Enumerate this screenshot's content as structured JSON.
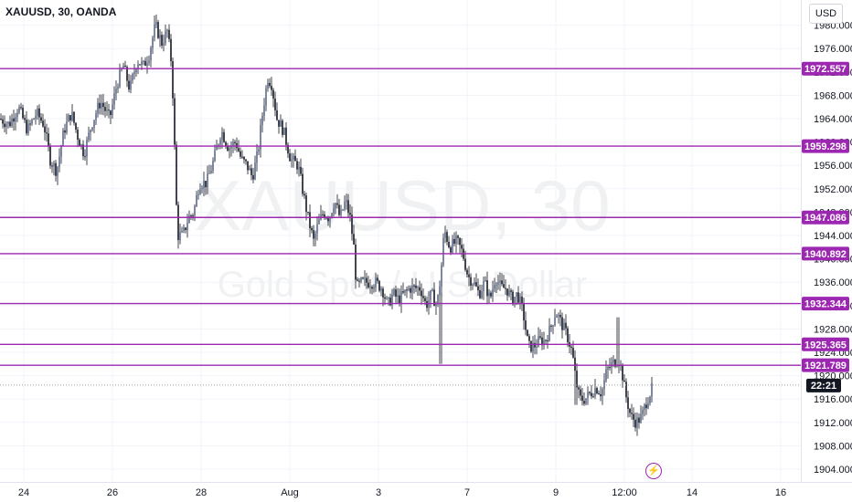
{
  "header": {
    "symbol": "XAUUSD, 30, OANDA"
  },
  "watermark": {
    "symbol": "XAUUSD, 30",
    "description": "Gold Spot / U.S. Dollar"
  },
  "price_axis": {
    "currency": "USD"
  },
  "countdown": "22:21",
  "colors": {
    "candle": "#131722",
    "level": "#9c27b0",
    "grid": "#f0f3fa",
    "countdown_bg": "#131722"
  },
  "icons": {
    "event": "lightning-icon"
  },
  "chart_data": {
    "type": "candlestick",
    "y_ticks": [
      1904,
      1908,
      1912,
      1916,
      1920,
      1924,
      1928,
      1932,
      1936,
      1940,
      1944,
      1948,
      1952,
      1956,
      1960,
      1964,
      1968,
      1972,
      1976,
      1980
    ],
    "y_tick_labels": [
      "1904.000",
      "1908.000",
      "1912.000",
      "1916.000",
      "1920.000",
      "1924.000",
      "1928.000",
      "1932.000",
      "1936.000",
      "1940.000",
      "1944.000",
      "1948.000",
      "1952.000",
      "1956.000",
      "1960.000",
      "1964.000",
      "1968.000",
      "1972.000",
      "1976.000",
      "1980.000"
    ],
    "ylim": [
      1901.5,
      1983.2
    ],
    "x_ticks": [
      "24",
      "26",
      "28",
      "Aug",
      "3",
      "7",
      "9",
      "12:00",
      "14",
      "16"
    ],
    "last_price": 1918.4,
    "levels": [
      {
        "value": 1972.557,
        "label": "1972.557"
      },
      {
        "value": 1959.298,
        "label": "1959.298"
      },
      {
        "value": 1947.086,
        "label": "1947.086"
      },
      {
        "value": 1940.892,
        "label": "1940.892"
      },
      {
        "value": 1932.344,
        "label": "1932.344"
      },
      {
        "value": 1925.365,
        "label": "1925.365"
      },
      {
        "value": 1921.789,
        "label": "1921.789"
      }
    ],
    "close_path": [
      [
        0,
        1964
      ],
      [
        10,
        1963
      ],
      [
        20,
        1966
      ],
      [
        30,
        1962
      ],
      [
        40,
        1965
      ],
      [
        48,
        1963
      ],
      [
        55,
        1957
      ],
      [
        62,
        1955
      ],
      [
        70,
        1962
      ],
      [
        78,
        1965
      ],
      [
        85,
        1961
      ],
      [
        92,
        1958
      ],
      [
        100,
        1963
      ],
      [
        110,
        1967
      ],
      [
        120,
        1964
      ],
      [
        128,
        1970
      ],
      [
        135,
        1973
      ],
      [
        142,
        1969
      ],
      [
        150,
        1974
      ],
      [
        157,
        1973
      ],
      [
        163,
        1975
      ],
      [
        170,
        1980
      ],
      [
        177,
        1977
      ],
      [
        183,
        1979
      ],
      [
        188,
        1973
      ],
      [
        191,
        1959
      ],
      [
        194,
        1944
      ],
      [
        200,
        1944
      ],
      [
        206,
        1947
      ],
      [
        212,
        1948
      ],
      [
        218,
        1953
      ],
      [
        226,
        1953
      ],
      [
        234,
        1957
      ],
      [
        242,
        1962
      ],
      [
        250,
        1959
      ],
      [
        258,
        1960
      ],
      [
        264,
        1957
      ],
      [
        270,
        1956
      ],
      [
        276,
        1954
      ],
      [
        282,
        1958
      ],
      [
        288,
        1966
      ],
      [
        293,
        1971
      ],
      [
        297,
        1970
      ],
      [
        303,
        1964
      ],
      [
        310,
        1962
      ],
      [
        318,
        1957
      ],
      [
        326,
        1956
      ],
      [
        332,
        1951
      ],
      [
        337,
        1947
      ],
      [
        343,
        1943
      ],
      [
        348,
        1946
      ],
      [
        354,
        1948
      ],
      [
        360,
        1947
      ],
      [
        366,
        1950
      ],
      [
        372,
        1947
      ],
      [
        378,
        1950
      ],
      [
        383,
        1947
      ],
      [
        387,
        1942
      ],
      [
        390,
        1935
      ],
      [
        396,
        1936
      ],
      [
        402,
        1936
      ],
      [
        410,
        1936
      ],
      [
        418,
        1935
      ],
      [
        424,
        1932
      ],
      [
        430,
        1934
      ],
      [
        436,
        1933
      ],
      [
        442,
        1934
      ],
      [
        448,
        1935
      ],
      [
        454,
        1935
      ],
      [
        460,
        1935
      ],
      [
        466,
        1932
      ],
      [
        472,
        1934
      ],
      [
        478,
        1932
      ],
      [
        482,
        1937
      ],
      [
        486,
        1945
      ],
      [
        492,
        1942
      ],
      [
        500,
        1943
      ],
      [
        506,
        1941
      ],
      [
        512,
        1937
      ],
      [
        518,
        1936
      ],
      [
        524,
        1934
      ],
      [
        530,
        1936
      ],
      [
        536,
        1933
      ],
      [
        542,
        1937
      ],
      [
        548,
        1935
      ],
      [
        554,
        1935
      ],
      [
        560,
        1933
      ],
      [
        566,
        1934
      ],
      [
        572,
        1931
      ],
      [
        578,
        1925
      ],
      [
        584,
        1925
      ],
      [
        590,
        1926
      ],
      [
        596,
        1926
      ],
      [
        602,
        1928
      ],
      [
        608,
        1931
      ],
      [
        614,
        1929
      ],
      [
        620,
        1927
      ],
      [
        626,
        1924
      ],
      [
        630,
        1919
      ],
      [
        634,
        1916
      ],
      [
        640,
        1916
      ],
      [
        646,
        1917
      ],
      [
        652,
        1918
      ],
      [
        658,
        1917
      ],
      [
        664,
        1921
      ],
      [
        670,
        1922
      ],
      [
        676,
        1923
      ],
      [
        680,
        1921
      ],
      [
        684,
        1917
      ],
      [
        690,
        1913
      ],
      [
        696,
        1912
      ],
      [
        702,
        1913
      ],
      [
        708,
        1916
      ],
      [
        714,
        1918
      ]
    ]
  }
}
